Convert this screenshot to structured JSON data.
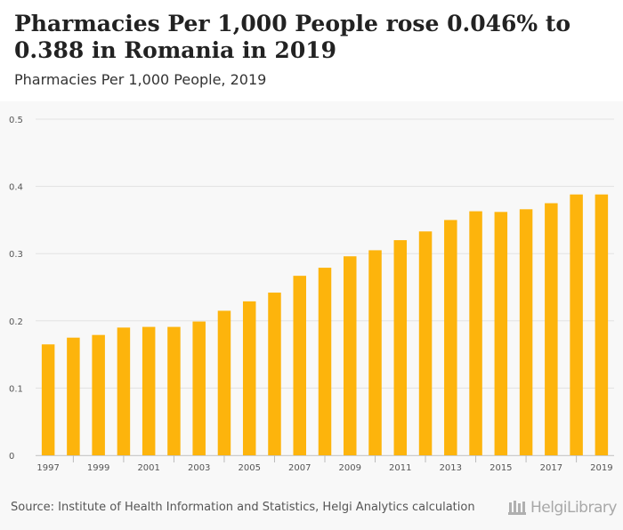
{
  "header": {
    "title": "Pharmacies Per 1,000 People rose 0.046% to 0.388 in Romania in 2019",
    "subtitle": "Pharmacies Per 1,000 People, 2019"
  },
  "footer": {
    "source": "Source: Institute of Health Information and Statistics, Helgi Analytics calculation",
    "brand": "HelgiLibrary"
  },
  "colors": {
    "bar": "#FDB40C",
    "grid": "#e2e2e2",
    "axis_text": "#555555"
  },
  "chart_data": {
    "type": "bar",
    "title": "Pharmacies Per 1,000 People rose 0.046% to 0.388 in Romania in 2019",
    "subtitle": "Pharmacies Per 1,000 People, 2019",
    "categories": [
      "1997",
      "1998",
      "1999",
      "2000",
      "2001",
      "2002",
      "2003",
      "2004",
      "2005",
      "2006",
      "2007",
      "2008",
      "2009",
      "2010",
      "2011",
      "2012",
      "2013",
      "2014",
      "2015",
      "2016",
      "2017",
      "2018",
      "2019"
    ],
    "x_tick_labels": [
      "1997",
      "1999",
      "2001",
      "2003",
      "2005",
      "2007",
      "2009",
      "2011",
      "2013",
      "2015",
      "2017",
      "2019"
    ],
    "values": [
      0.165,
      0.175,
      0.179,
      0.19,
      0.191,
      0.191,
      0.199,
      0.215,
      0.229,
      0.242,
      0.267,
      0.279,
      0.296,
      0.305,
      0.32,
      0.333,
      0.35,
      0.363,
      0.362,
      0.366,
      0.375,
      0.388,
      0.388
    ],
    "y_ticks": [
      "0",
      "0.1",
      "0.2",
      "0.3",
      "0.4",
      "0.5"
    ],
    "ylim": [
      0,
      0.5
    ],
    "xlabel": "",
    "ylabel": "",
    "grid": true,
    "legend": "none"
  }
}
